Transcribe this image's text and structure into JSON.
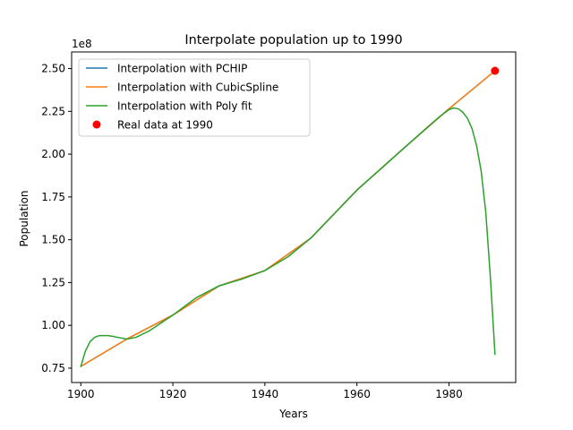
{
  "chart_data": {
    "type": "line",
    "title": "Interpolate population up to 1990",
    "xlabel": "Years",
    "ylabel": "Population",
    "y_offset_text": "1e8",
    "xlim": [
      1898,
      1994.5
    ],
    "ylim": [
      0.666,
      2.597
    ],
    "x_ticks": [
      1900,
      1920,
      1940,
      1960,
      1980
    ],
    "x_tick_labels": [
      "1900",
      "1920",
      "1940",
      "1960",
      "1980"
    ],
    "y_ticks": [
      0.75,
      1.0,
      1.25,
      1.5,
      1.75,
      2.0,
      2.25,
      2.5
    ],
    "y_tick_labels": [
      "0.75",
      "1.00",
      "1.25",
      "1.50",
      "1.75",
      "2.00",
      "2.25",
      "2.50"
    ],
    "grid": false,
    "legend_position": "top-left",
    "series": [
      {
        "name": "Interpolation with PCHIP",
        "color": "#1f77b4",
        "marker": "line",
        "points": [
          [
            1900,
            0.76
          ],
          [
            1910,
            0.92
          ],
          [
            1920,
            1.06
          ],
          [
            1930,
            1.23
          ],
          [
            1940,
            1.32
          ],
          [
            1950,
            1.51
          ],
          [
            1960,
            1.79
          ],
          [
            1970,
            2.03
          ],
          [
            1980,
            2.265
          ],
          [
            1990,
            2.487
          ]
        ]
      },
      {
        "name": "Interpolation with CubicSpline",
        "color": "#ff7f0e",
        "marker": "line",
        "points": [
          [
            1900,
            0.76
          ],
          [
            1910,
            0.92
          ],
          [
            1920,
            1.06
          ],
          [
            1930,
            1.23
          ],
          [
            1940,
            1.32
          ],
          [
            1950,
            1.51
          ],
          [
            1960,
            1.79
          ],
          [
            1970,
            2.03
          ],
          [
            1980,
            2.265
          ],
          [
            1990,
            2.487
          ]
        ]
      },
      {
        "name": "Interpolation with Poly fit",
        "color": "#2ca02c",
        "marker": "line",
        "points": [
          [
            1900,
            0.76
          ],
          [
            1901,
            0.85
          ],
          [
            1902,
            0.905
          ],
          [
            1903,
            0.93
          ],
          [
            1904,
            0.94
          ],
          [
            1906,
            0.94
          ],
          [
            1908,
            0.93
          ],
          [
            1910,
            0.92
          ],
          [
            1912,
            0.93
          ],
          [
            1915,
            0.97
          ],
          [
            1920,
            1.06
          ],
          [
            1925,
            1.16
          ],
          [
            1930,
            1.23
          ],
          [
            1935,
            1.27
          ],
          [
            1940,
            1.32
          ],
          [
            1945,
            1.4
          ],
          [
            1950,
            1.51
          ],
          [
            1955,
            1.65
          ],
          [
            1960,
            1.79
          ],
          [
            1965,
            1.91
          ],
          [
            1970,
            2.03
          ],
          [
            1975,
            2.15
          ],
          [
            1978,
            2.22
          ],
          [
            1980,
            2.26
          ],
          [
            1981,
            2.27
          ],
          [
            1982,
            2.265
          ],
          [
            1983,
            2.245
          ],
          [
            1984,
            2.21
          ],
          [
            1985,
            2.15
          ],
          [
            1986,
            2.05
          ],
          [
            1987,
            1.9
          ],
          [
            1988,
            1.66
          ],
          [
            1989,
            1.28
          ],
          [
            1990,
            0.83
          ]
        ]
      },
      {
        "name": "Real data at 1990",
        "color": "#ff0000",
        "marker": "point",
        "points": [
          [
            1990,
            2.487
          ]
        ]
      }
    ]
  }
}
